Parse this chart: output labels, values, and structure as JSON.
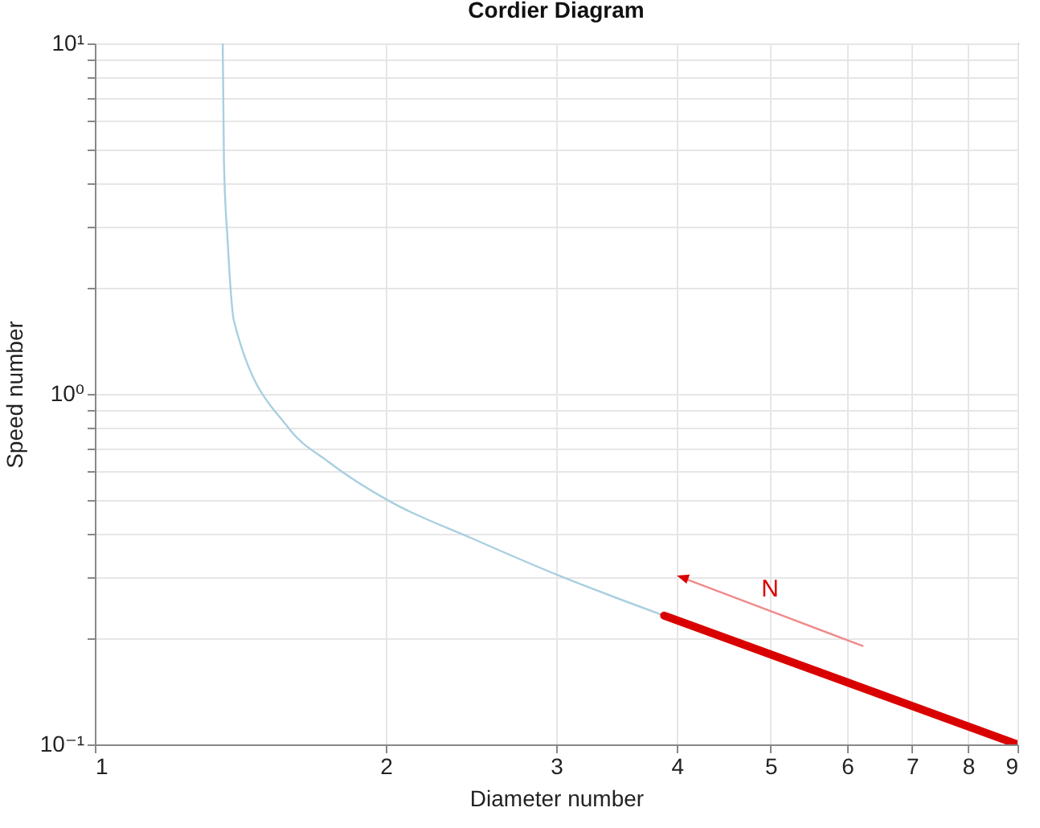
{
  "chart_data": {
    "type": "line",
    "title": "Cordier Diagram",
    "xlabel": "Diameter number",
    "ylabel": "Speed number",
    "log": "xy",
    "grid": true,
    "xlim": [
      1,
      9
    ],
    "xticks": [
      1,
      2,
      3,
      4,
      5,
      6,
      7,
      8,
      9
    ],
    "ylim": [
      0.1,
      10
    ],
    "yticks": [
      {
        "value": 0.1,
        "label": "10⁻¹"
      },
      {
        "value": 0.2,
        "label": null
      },
      {
        "value": 0.3,
        "label": null
      },
      {
        "value": 0.4,
        "label": null
      },
      {
        "value": 0.5,
        "label": null
      },
      {
        "value": 0.6,
        "label": null
      },
      {
        "value": 0.7,
        "label": null
      },
      {
        "value": 0.8,
        "label": null
      },
      {
        "value": 0.9,
        "label": null
      },
      {
        "value": 1,
        "label": "10⁰"
      },
      {
        "value": 2,
        "label": null
      },
      {
        "value": 3,
        "label": null
      },
      {
        "value": 4,
        "label": null
      },
      {
        "value": 5,
        "label": null
      },
      {
        "value": 6,
        "label": null
      },
      {
        "value": 7,
        "label": null
      },
      {
        "value": 8,
        "label": null
      },
      {
        "value": 9,
        "label": null
      },
      {
        "value": 10,
        "label": "10¹"
      }
    ],
    "series": [
      {
        "color": "#a9cfe0",
        "x": [
          1.356,
          1.36,
          1.372,
          1.393,
          1.588,
          1.743,
          2.02,
          2.45,
          3.03,
          3.88
        ],
        "values": [
          10,
          4.6,
          2.73,
          1.61,
          0.796,
          0.641,
          0.493,
          0.388,
          0.302,
          0.233
        ]
      },
      {
        "color": "#d90000",
        "x": [
          3.88,
          9.0
        ],
        "values": [
          0.233,
          0.1
        ]
      }
    ],
    "annotations": [
      "N"
    ]
  }
}
